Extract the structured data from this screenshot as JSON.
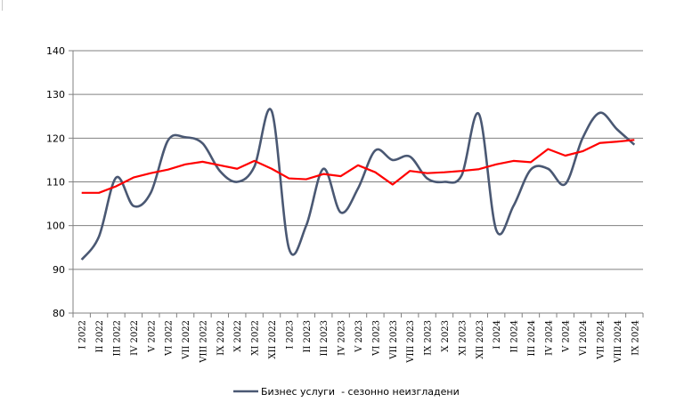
{
  "chart_data": {
    "type": "line",
    "title": "",
    "xlabel": "",
    "ylabel": "",
    "ylim": [
      80,
      140
    ],
    "yticks": [
      80,
      90,
      100,
      110,
      120,
      130,
      140
    ],
    "grid": "horizontal",
    "legend_position": "bottom",
    "categories": [
      "I 2022",
      "II 2022",
      "III 2022",
      "IV 2022",
      "V 2022",
      "VI 2022",
      "VII 2022",
      "VIII 2022",
      "IX 2022",
      "X 2022",
      "XI 2022",
      "XII 2022",
      "I 2023",
      "II 2023",
      "III 2023",
      "IV 2023",
      "V 2023",
      "VI 2023",
      "VII 2023",
      "VIII 2023",
      "IX 2023",
      "X 2023",
      "XI 2023",
      "XII 2023",
      "I 2024",
      "II 2024",
      "III 2024",
      "IV 2024",
      "V 2024",
      "VI 2024",
      "VII 2024",
      "VIII 2024",
      "IX 2024"
    ],
    "series": [
      {
        "name": "Бизнес услуги  - сезонно неизгладени",
        "color": "#4a5873",
        "smooth": true,
        "values": [
          92.2,
          97.5,
          111.0,
          104.5,
          107.5,
          119.5,
          120.2,
          118.8,
          112.5,
          110.0,
          113.5,
          126.2,
          94.8,
          100.0,
          113.0,
          103.0,
          108.5,
          117.2,
          115.0,
          115.8,
          110.8,
          110.0,
          111.5,
          125.5,
          99.0,
          104.5,
          112.8,
          113.0,
          109.5,
          120.0,
          125.8,
          122.0,
          118.5
        ]
      },
      {
        "color": "#ff0000",
        "smooth": false,
        "values": [
          107.5,
          107.5,
          109.0,
          111.0,
          112.0,
          112.8,
          114.0,
          114.6,
          113.8,
          113.0,
          114.8,
          113.0,
          110.8,
          110.6,
          111.8,
          111.3,
          113.8,
          112.2,
          109.4,
          112.5,
          112.0,
          112.2,
          112.5,
          112.9,
          114.0,
          114.8,
          114.5,
          117.5,
          116.0,
          117.0,
          118.9,
          119.2,
          119.6
        ]
      }
    ]
  }
}
